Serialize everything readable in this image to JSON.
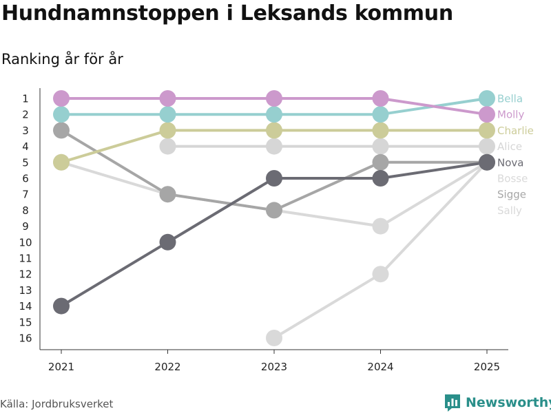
{
  "header": {
    "title": "Hundnamnstoppen i Leksands kommun",
    "subtitle": "Ranking år för år"
  },
  "footer": {
    "source": "Källa: Jordbruksverket",
    "brand": "Newsworthy",
    "brand_icon": "bar-chart-logo-icon"
  },
  "colors": {
    "Bella": "#96cfcf",
    "Molly": "#cc99cc",
    "Charlie": "#cccc99",
    "Alice": "#d6d6d6",
    "Nova": "#6b6b73",
    "Bosse": "#d9d9d9",
    "Sigge": "#a6a6a6",
    "Sally": "#d9d9d9",
    "axis": "#333333"
  },
  "chart_data": {
    "type": "line",
    "title": "Hundnamnstoppen i Leksands kommun",
    "subtitle": "Ranking år för år",
    "xlabel": "",
    "ylabel": "",
    "y_reversed": true,
    "ylim": [
      1,
      16
    ],
    "yticks": [
      1,
      2,
      3,
      4,
      5,
      6,
      7,
      8,
      9,
      10,
      11,
      12,
      13,
      14,
      15,
      16
    ],
    "categories": [
      "2021",
      "2022",
      "2023",
      "2024",
      "2025"
    ],
    "series": [
      {
        "name": "Bosse",
        "values": [
          null,
          null,
          16,
          12,
          5
        ]
      },
      {
        "name": "Sally",
        "values": [
          5,
          7,
          8,
          9,
          5
        ]
      },
      {
        "name": "Alice",
        "values": [
          null,
          4,
          4,
          4,
          4
        ]
      },
      {
        "name": "Sigge",
        "values": [
          3,
          7,
          8,
          5,
          5
        ]
      },
      {
        "name": "Nova",
        "values": [
          14,
          10,
          6,
          6,
          5
        ]
      },
      {
        "name": "Charlie",
        "values": [
          5,
          3,
          3,
          3,
          3
        ]
      },
      {
        "name": "Bella",
        "values": [
          2,
          2,
          2,
          2,
          1
        ]
      },
      {
        "name": "Molly",
        "values": [
          1,
          1,
          1,
          1,
          2
        ]
      }
    ],
    "legend_order": [
      "Bella",
      "Molly",
      "Charlie",
      "Alice",
      "Nova",
      "Bosse",
      "Sigge",
      "Sally"
    ],
    "legend_placement": "right"
  }
}
